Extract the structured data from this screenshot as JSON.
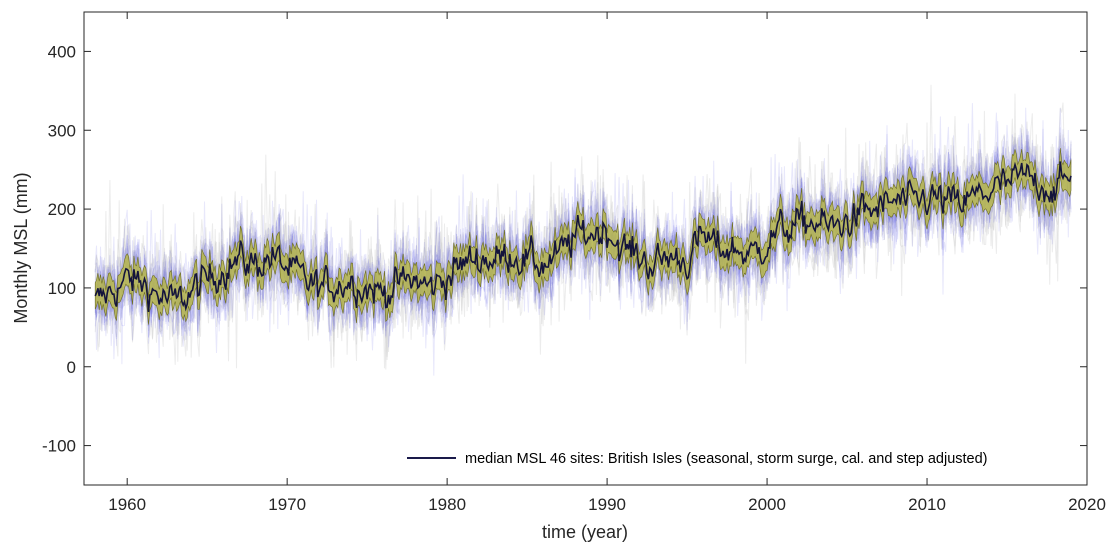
{
  "chart_data": {
    "type": "line",
    "xlabel": "time (year)",
    "ylabel": "Monthly MSL (mm)",
    "xlim": [
      1957.3,
      2020
    ],
    "ylim": [
      -150,
      450
    ],
    "xticks": [
      1960,
      1970,
      1980,
      1990,
      2000,
      2010,
      2020
    ],
    "yticks": [
      -100,
      0,
      100,
      200,
      300,
      400
    ],
    "x_tick_labels": [
      "1960",
      "1970",
      "1980",
      "1990",
      "2000",
      "2010",
      "2020"
    ],
    "y_tick_labels": [
      "-100",
      "0",
      "100",
      "200",
      "300",
      "400"
    ],
    "grid": false,
    "legend": {
      "position": "bottom-right",
      "entries": [
        {
          "label": "median MSL 46 sites: British Isles (seasonal, storm surge, cal. and step adjusted)",
          "color": "#1a1a4a"
        }
      ]
    },
    "colors": {
      "median": "#14143c",
      "confidence_band": "#b8b84a",
      "individual_sites": "#5a5ae6",
      "other_sites": "#c8c8c8"
    },
    "series": [
      {
        "name": "median MSL 46 sites: British Isles (seasonal, storm surge, cal. and step adjusted)",
        "x": [
          1958.0,
          1959.0,
          1960.0,
          1961.0,
          1962.0,
          1963.0,
          1964.0,
          1965.0,
          1966.0,
          1967.0,
          1968.0,
          1969.0,
          1970.0,
          1971.0,
          1972.0,
          1973.0,
          1974.0,
          1975.0,
          1976.0,
          1977.0,
          1978.0,
          1979.0,
          1980.0,
          1981.0,
          1982.0,
          1983.0,
          1984.0,
          1985.0,
          1986.0,
          1987.0,
          1988.0,
          1989.0,
          1990.0,
          1991.0,
          1992.0,
          1993.0,
          1994.0,
          1995.0,
          1996.0,
          1997.0,
          1998.0,
          1999.0,
          2000.0,
          2001.0,
          2002.0,
          2003.0,
          2004.0,
          2005.0,
          2006.0,
          2007.0,
          2008.0,
          2009.0,
          2010.0,
          2011.0,
          2012.0,
          2013.0,
          2014.0,
          2015.0,
          2016.0,
          2017.0,
          2018.0,
          2019.0
        ],
        "y": [
          80,
          95,
          110,
          105,
          90,
          80,
          95,
          110,
          125,
          135,
          130,
          140,
          125,
          110,
          100,
          105,
          110,
          100,
          95,
          105,
          110,
          100,
          115,
          130,
          140,
          135,
          145,
          135,
          130,
          140,
          165,
          170,
          175,
          150,
          140,
          130,
          140,
          135,
          165,
          150,
          150,
          140,
          160,
          175,
          180,
          185,
          175,
          185,
          195,
          200,
          210,
          205,
          215,
          210,
          205,
          215,
          225,
          230,
          240,
          235,
          225,
          240
        ]
      }
    ]
  }
}
